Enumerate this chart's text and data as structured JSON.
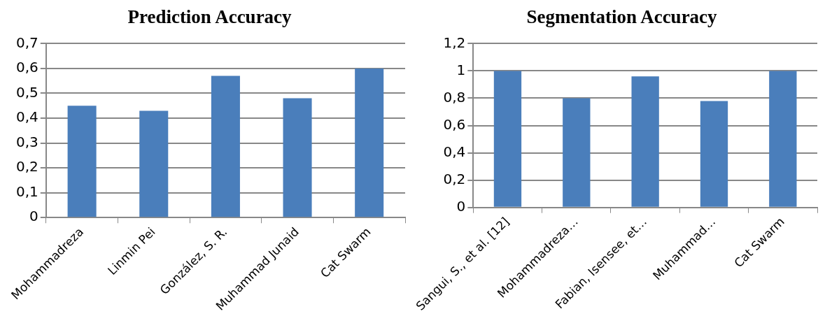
{
  "chart_data": [
    {
      "type": "bar",
      "title": "Prediction Accuracy",
      "categories": [
        "Mohammadreza",
        "Linmin Pei",
        "González, S. R.",
        "Muhammad Junaid",
        "Cat Swarm"
      ],
      "values": [
        0.45,
        0.43,
        0.57,
        0.48,
        0.6
      ],
      "color": "#4a7ebb",
      "ylim": [
        0,
        0.7
      ],
      "yticks": [
        {
          "value": 0,
          "label": "0"
        },
        {
          "value": 0.1,
          "label": "0,1"
        },
        {
          "value": 0.2,
          "label": "0,2"
        },
        {
          "value": 0.3,
          "label": "0,3"
        },
        {
          "value": 0.4,
          "label": "0,4"
        },
        {
          "value": 0.5,
          "label": "0,5"
        },
        {
          "value": 0.6,
          "label": "0,6"
        },
        {
          "value": 0.7,
          "label": "0,7"
        }
      ],
      "grid": "y"
    },
    {
      "type": "bar",
      "title": "Segmentation Accuracy",
      "categories": [
        "Sangui, S., et al. [12]",
        "Mohammadreza…",
        "Fabian, Isensee, et…",
        "Muhammad…",
        "Cat Swarm"
      ],
      "values": [
        1.0,
        0.8,
        0.96,
        0.78,
        1.0
      ],
      "color": "#4a7ebb",
      "ylim": [
        0,
        1.2
      ],
      "yticks": [
        {
          "value": 0,
          "label": "0"
        },
        {
          "value": 0.2,
          "label": "0,2"
        },
        {
          "value": 0.4,
          "label": "0,4"
        },
        {
          "value": 0.6,
          "label": "0,6"
        },
        {
          "value": 0.8,
          "label": "0,8"
        },
        {
          "value": 1,
          "label": "1"
        },
        {
          "value": 1.2,
          "label": "1,2"
        }
      ],
      "grid": "y"
    }
  ]
}
